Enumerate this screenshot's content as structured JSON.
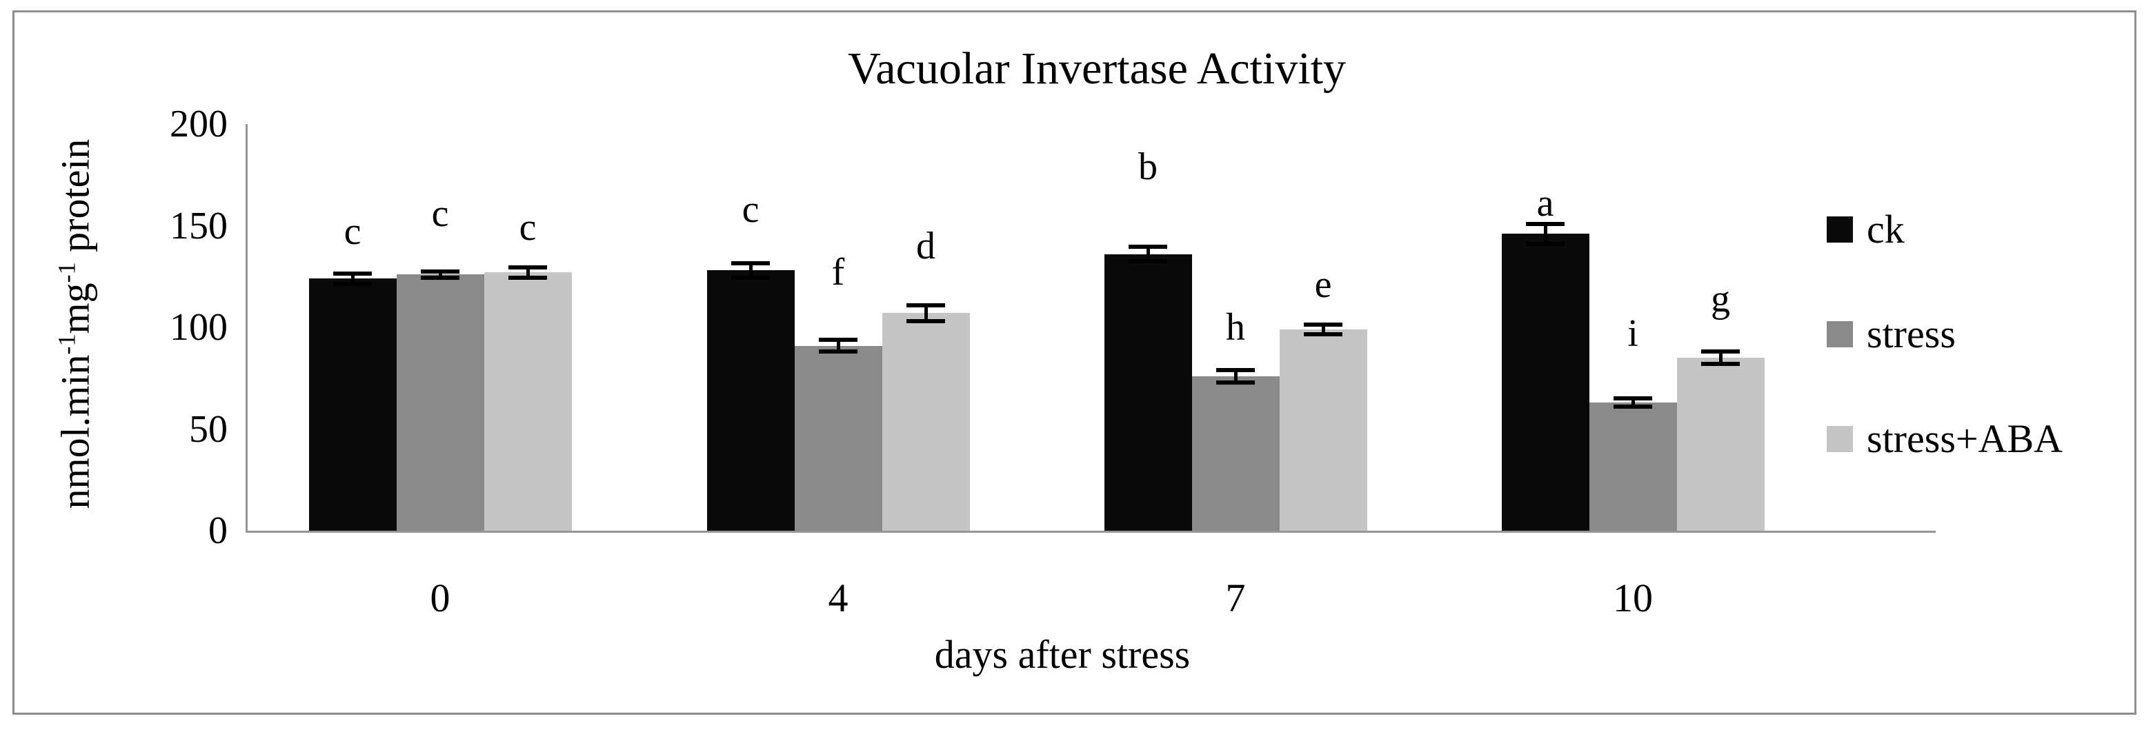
{
  "chart_data": {
    "type": "bar",
    "title": "Vacuolar Invertase Activity",
    "xlabel": "days after stress",
    "ylabel": "nmol.min-1mg-1 protein",
    "ylabel_parts": {
      "p1": "nmol.min",
      "p2": "-1",
      "p3": "mg",
      "p4": "-1",
      "p5": " protein"
    },
    "categories": [
      "0",
      "4",
      "7",
      "10"
    ],
    "y_ticks": [
      "0",
      "50",
      "100",
      "150",
      "200"
    ],
    "ylim": [
      0,
      200
    ],
    "grid": false,
    "legend_position": "right",
    "series": [
      {
        "name": "ck",
        "color": "#0a0a0a",
        "values": [
          124,
          128,
          136,
          146
        ],
        "errors": [
          2.5,
          3.5,
          3.5,
          5
        ],
        "letters": [
          "c",
          "c",
          "b",
          "a"
        ],
        "letter_y": [
          147,
          158,
          179,
          161
        ]
      },
      {
        "name": "stress",
        "color": "#8a8a8a",
        "values": [
          126,
          91,
          76,
          63
        ],
        "errors": [
          1.5,
          3,
          3,
          2
        ],
        "letters": [
          "c",
          "f",
          "h",
          "i"
        ],
        "letter_y": [
          156,
          127,
          100,
          97
        ]
      },
      {
        "name": "stress+ABA",
        "color": "#c5c5c5",
        "values": [
          127,
          107,
          99,
          85
        ],
        "errors": [
          2.5,
          4,
          2.5,
          3
        ],
        "letters": [
          "c",
          "d",
          "e",
          "g"
        ],
        "letter_y": [
          149,
          140,
          121,
          114
        ]
      }
    ],
    "axis_color": "#969696",
    "frame_border_color": "#8e8e8e",
    "error_bar_color": "#000000",
    "text_color": "#000000"
  }
}
